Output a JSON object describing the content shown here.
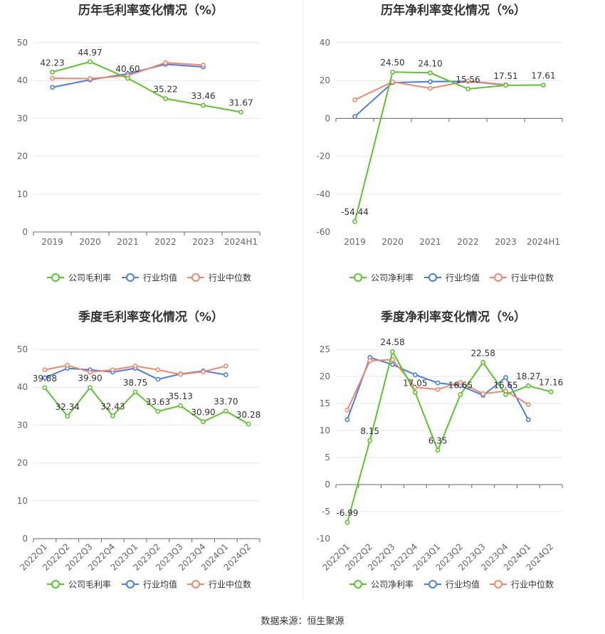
{
  "colors": {
    "company": "#5cc42f",
    "avg": "#4a7fe0",
    "median": "#f0896a"
  },
  "source": "数据来源：恒生聚源",
  "chart_data": [
    {
      "id": "annual-gross",
      "type": "line",
      "title": "历年毛利率变化情况（%）",
      "categories": [
        "2019",
        "2020",
        "2021",
        "2022",
        "2023",
        "2024H1"
      ],
      "ylim": [
        0,
        50
      ],
      "yticks": [
        0,
        10,
        20,
        30,
        40,
        50
      ],
      "rotate_x": false,
      "legend": [
        "公司毛利率",
        "行业均值",
        "行业中位数"
      ],
      "series": [
        {
          "key": "company",
          "values": [
            42.23,
            44.97,
            40.6,
            35.22,
            33.46,
            31.67
          ],
          "labels": [
            "42.23",
            "44.97",
            "40.60",
            "35.22",
            "33.46",
            "31.67"
          ]
        },
        {
          "key": "avg",
          "values": [
            38.2,
            40.2,
            41.8,
            44.3,
            43.6,
            null
          ]
        },
        {
          "key": "median",
          "values": [
            40.6,
            40.5,
            41.3,
            44.7,
            44.1,
            null
          ]
        }
      ]
    },
    {
      "id": "annual-net",
      "type": "line",
      "title": "历年净利率变化情况（%）",
      "categories": [
        "2019",
        "2020",
        "2021",
        "2022",
        "2023",
        "2024H1"
      ],
      "ylim": [
        -60,
        40
      ],
      "yticks": [
        -60,
        -40,
        -20,
        0,
        20,
        40
      ],
      "rotate_x": false,
      "legend": [
        "公司净利率",
        "行业均值",
        "行业中位数"
      ],
      "series": [
        {
          "key": "company",
          "values": [
            -54.44,
            24.5,
            24.1,
            15.56,
            17.51,
            17.61
          ],
          "labels": [
            "-54.44",
            "24.50",
            "24.10",
            "15.56",
            "17.51",
            "17.61"
          ]
        },
        {
          "key": "avg",
          "values": [
            1.0,
            18.9,
            19.4,
            19.6,
            17.6,
            null
          ]
        },
        {
          "key": "median",
          "values": [
            9.8,
            19.3,
            15.9,
            19.8,
            17.8,
            null
          ]
        }
      ]
    },
    {
      "id": "quarterly-gross",
      "type": "line",
      "title": "季度毛利率变化情况（%）",
      "categories": [
        "2022Q1",
        "2022Q2",
        "2022Q3",
        "2022Q4",
        "2023Q1",
        "2023Q2",
        "2023Q3",
        "2023Q4",
        "2024Q1",
        "2024Q2"
      ],
      "ylim": [
        0,
        50
      ],
      "yticks": [
        0,
        10,
        20,
        30,
        40,
        50
      ],
      "rotate_x": true,
      "legend": [
        "公司毛利率",
        "行业均值",
        "行业中位数"
      ],
      "series": [
        {
          "key": "company",
          "values": [
            39.88,
            32.34,
            39.9,
            32.43,
            38.75,
            33.63,
            35.13,
            30.9,
            33.7,
            30.28
          ],
          "labels": [
            "39.88",
            "32.34",
            "39.90",
            "32.43",
            "38.75",
            "33.63",
            "35.13",
            "30.90",
            "33.70",
            "30.28"
          ]
        },
        {
          "key": "avg",
          "values": [
            42.5,
            45.0,
            44.6,
            44.0,
            45.0,
            42.1,
            43.5,
            44.3,
            43.3,
            null
          ]
        },
        {
          "key": "median",
          "values": [
            44.6,
            45.8,
            44.0,
            44.6,
            45.6,
            44.6,
            43.4,
            44.1,
            45.6,
            null
          ]
        }
      ]
    },
    {
      "id": "quarterly-net",
      "type": "line",
      "title": "季度净利率变化情况（%）",
      "categories": [
        "2022Q1",
        "2022Q2",
        "2022Q3",
        "2022Q4",
        "2023Q1",
        "2023Q2",
        "2023Q3",
        "2023Q4",
        "2024Q1",
        "2024Q2"
      ],
      "ylim": [
        -10,
        25
      ],
      "yticks": [
        -10,
        -5,
        0,
        5,
        10,
        15,
        20,
        25
      ],
      "rotate_x": true,
      "legend": [
        "公司净利率",
        "行业均值",
        "行业中位数"
      ],
      "series": [
        {
          "key": "company",
          "values": [
            -6.99,
            8.15,
            24.58,
            17.05,
            6.35,
            16.65,
            22.58,
            16.65,
            18.27,
            17.16
          ],
          "labels": [
            "-6.99",
            "8.15",
            "24.58",
            "17.05",
            "6.35",
            "16.65",
            "22.58",
            "16.65",
            "18.27",
            "17.16"
          ]
        },
        {
          "key": "avg",
          "values": [
            12.0,
            23.5,
            22.2,
            20.3,
            18.8,
            18.3,
            16.5,
            19.8,
            12.0,
            null
          ]
        },
        {
          "key": "median",
          "values": [
            13.8,
            22.9,
            23.1,
            18.0,
            17.6,
            18.9,
            16.8,
            17.3,
            14.8,
            null
          ]
        }
      ]
    }
  ]
}
